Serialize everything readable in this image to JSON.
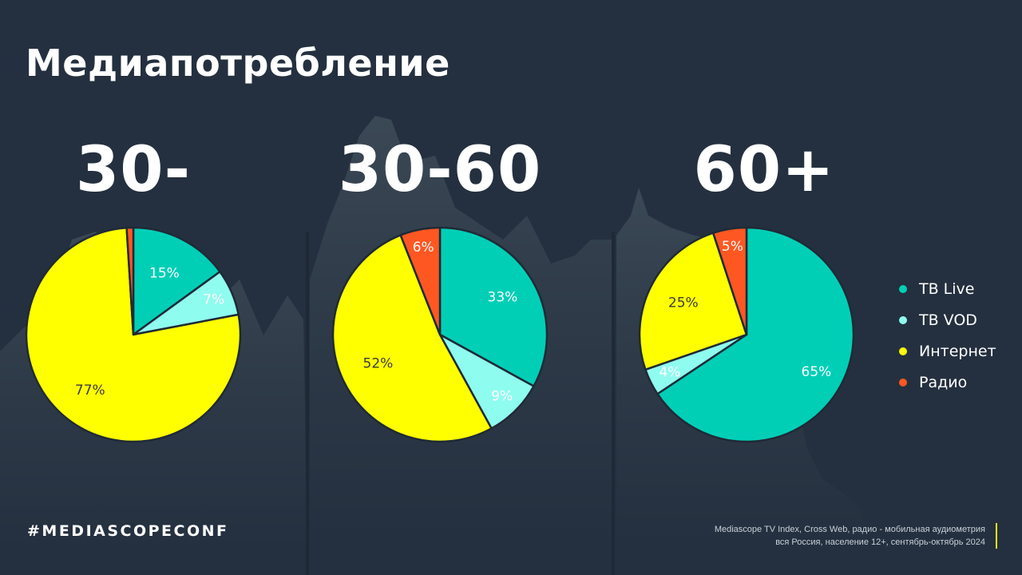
{
  "title": "Медиапотребление",
  "groups": [
    {
      "label": "30-"
    },
    {
      "label": "30-60"
    },
    {
      "label": "60+"
    }
  ],
  "legend": [
    {
      "label": "ТВ Live",
      "color": "#00cfb6"
    },
    {
      "label": "ТВ VOD",
      "color": "#8ffcf0"
    },
    {
      "label": "Интернет",
      "color": "#ffff00"
    },
    {
      "label": "Радио",
      "color": "#ff5722"
    }
  ],
  "footer": {
    "hashtag": "#MEDIASCOPECONF",
    "source_line1": "Mediascope TV Index, Cross Web, радио - мобильная аудиометрия",
    "source_line2": "вся Россия, население 12+, сентябрь-октябрь 2024"
  },
  "chart_data": [
    {
      "type": "pie",
      "title": "30-",
      "labels": [
        "ТВ Live",
        "ТВ VOD",
        "Интернет",
        "Радио"
      ],
      "values": [
        15,
        7,
        77,
        1
      ],
      "data_labels": [
        "15%",
        "7%",
        "77%",
        ""
      ],
      "colors": [
        "#00cfb6",
        "#8ffcf0",
        "#ffff00",
        "#ff5722"
      ]
    },
    {
      "type": "pie",
      "title": "30-60",
      "labels": [
        "ТВ Live",
        "ТВ VOD",
        "Интернет",
        "Радио"
      ],
      "values": [
        33,
        9,
        52,
        6
      ],
      "data_labels": [
        "33%",
        "9%",
        "52%",
        "6%"
      ],
      "colors": [
        "#00cfb6",
        "#8ffcf0",
        "#ffff00",
        "#ff5722"
      ]
    },
    {
      "type": "pie",
      "title": "60+",
      "labels": [
        "ТВ Live",
        "ТВ VOD",
        "Интернет",
        "Радио"
      ],
      "values": [
        65,
        4,
        25,
        5
      ],
      "data_labels": [
        "65%",
        "4%",
        "25%",
        "5%"
      ],
      "colors": [
        "#00cfb6",
        "#8ffcf0",
        "#ffff00",
        "#ff5722"
      ]
    }
  ]
}
